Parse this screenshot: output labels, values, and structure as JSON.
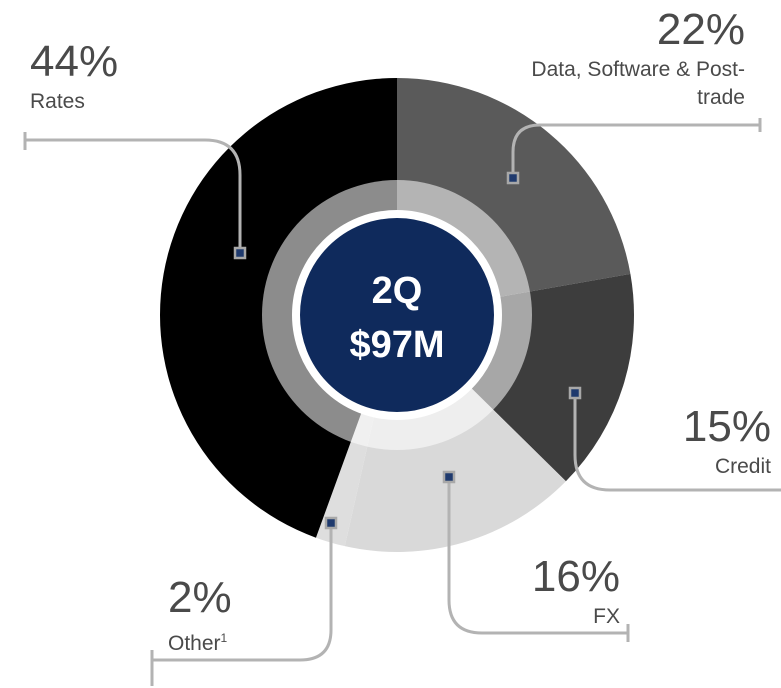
{
  "chart_data": {
    "type": "donut",
    "center_title": "2Q",
    "center_value": "$97M",
    "categories": [
      "Data, Software & Post-trade",
      "Credit",
      "FX",
      "Other",
      "Rates"
    ],
    "values": [
      22,
      15,
      16,
      2,
      44
    ],
    "value_labels": [
      "22%",
      "15%",
      "16%",
      "2%",
      "44%"
    ],
    "colors": [
      "#5a5a5a",
      "#3d3d3d",
      "#d9d9d9",
      "#dedede",
      "#000000"
    ],
    "footnote_mark": "1"
  }
}
